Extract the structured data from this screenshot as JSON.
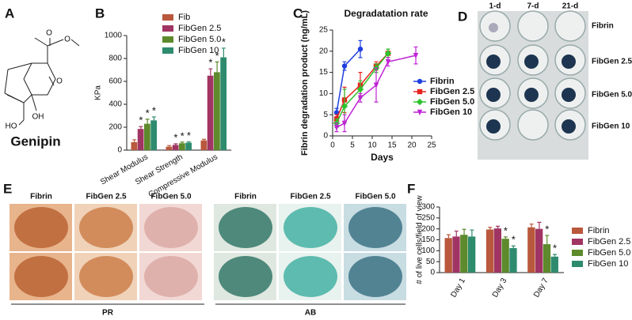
{
  "figure": {
    "panel_labels": [
      "A",
      "B",
      "C",
      "D",
      "E",
      "F"
    ],
    "compound": "Genipin",
    "atoms": [
      "O",
      "O",
      "O",
      "HO",
      "OH"
    ],
    "d_columns": [
      "1-d",
      "7-d",
      "21-d"
    ],
    "d_rows": [
      "Fibrin",
      "FibGen 2.5",
      "FibGen 5.0",
      "FibGen 10"
    ],
    "e_columns": [
      "Fibrin",
      "FibGen 2.5",
      "FibGen 5.0",
      "Fibrin",
      "FibGen 2.5",
      "FibGen 5.0"
    ],
    "e_stains": [
      "PR",
      "AB"
    ]
  },
  "chart_data": [
    {
      "type": "bar",
      "ylabel": "KPa",
      "categories": [
        "Shear Modulus",
        "Shear Strength",
        "Compressive Modulus"
      ],
      "ylim": [
        0,
        1000
      ],
      "yticks": [
        0,
        200,
        400,
        600,
        800,
        1000
      ],
      "series": [
        {
          "name": "Fib",
          "color": "#b9583c",
          "values": [
            70,
            30,
            85
          ],
          "errors": [
            20,
            10,
            10
          ]
        },
        {
          "name": "FibGen 2.5",
          "color": "#a03563",
          "values": [
            185,
            45,
            650
          ],
          "errors": [
            20,
            10,
            60
          ],
          "significance": [
            "*",
            "*",
            "*"
          ]
        },
        {
          "name": "FibGen 5.0",
          "color": "#5d8a2c",
          "values": [
            230,
            60,
            680
          ],
          "errors": [
            40,
            10,
            90
          ],
          "significance": [
            "*",
            "*",
            "*"
          ]
        },
        {
          "name": "FibGen 10",
          "color": "#2e8b6e",
          "values": [
            260,
            65,
            810
          ],
          "errors": [
            30,
            8,
            80
          ],
          "significance": [
            "*",
            "*",
            "*"
          ]
        }
      ]
    },
    {
      "type": "line",
      "title": "Degradatation rate",
      "ylabel": "Fibrin degradation product (ng/mL)",
      "xlabel": "Days",
      "xlim": [
        0,
        25
      ],
      "xticks": [
        0,
        5,
        10,
        15,
        20,
        25
      ],
      "ylim": [
        0,
        25
      ],
      "yticks": [
        0,
        5,
        10,
        15,
        20,
        25
      ],
      "series": [
        {
          "name": "Fibrin",
          "color": "#1f3fe0",
          "marker": "circle",
          "x": [
            1,
            3,
            7
          ],
          "values": [
            5.5,
            16.5,
            20.5
          ],
          "errors": [
            1,
            1,
            2
          ]
        },
        {
          "name": "FibGen 2.5",
          "color": "#e8231e",
          "marker": "square",
          "x": [
            1,
            3,
            7,
            11,
            14
          ],
          "values": [
            4,
            8.5,
            12,
            16.5,
            19.5
          ],
          "errors": [
            1,
            3,
            3,
            1,
            1
          ]
        },
        {
          "name": "FibGen 5.0",
          "color": "#2ec22e",
          "marker": "diamond",
          "x": [
            1,
            3,
            7,
            11,
            14
          ],
          "values": [
            3,
            7,
            11,
            16,
            19.5
          ],
          "errors": [
            1,
            4,
            2,
            1,
            1
          ]
        },
        {
          "name": "FibGen 10",
          "color": "#c023d6",
          "marker": "triangle",
          "x": [
            1,
            3,
            7,
            11,
            14,
            21
          ],
          "values": [
            2,
            3,
            9,
            12,
            17.5,
            19
          ],
          "errors": [
            1,
            2,
            1,
            4,
            1,
            2
          ]
        }
      ]
    },
    {
      "type": "bar",
      "ylabel": "# of live cells/field of view",
      "categories": [
        "Day 1",
        "Day 3",
        "Day 7"
      ],
      "ylim": [
        0,
        300
      ],
      "yticks": [
        0,
        50,
        100,
        150,
        200,
        250,
        300
      ],
      "series": [
        {
          "name": "Fibrin",
          "color": "#b9583c",
          "values": [
            158,
            197,
            207
          ],
          "errors": [
            15,
            10,
            15
          ]
        },
        {
          "name": "FibGen 2.5",
          "color": "#a03563",
          "values": [
            165,
            202,
            200
          ],
          "errors": [
            25,
            10,
            30
          ]
        },
        {
          "name": "FibGen 5.0",
          "color": "#5d8a2c",
          "values": [
            173,
            155,
            130
          ],
          "errors": [
            25,
            8,
            40
          ],
          "significance": [
            null,
            "*",
            "*"
          ]
        },
        {
          "name": "FibGen 10",
          "color": "#2e8b6e",
          "values": [
            165,
            112,
            73
          ],
          "errors": [
            30,
            10,
            10
          ],
          "significance": [
            null,
            "*",
            "*"
          ]
        }
      ]
    }
  ]
}
